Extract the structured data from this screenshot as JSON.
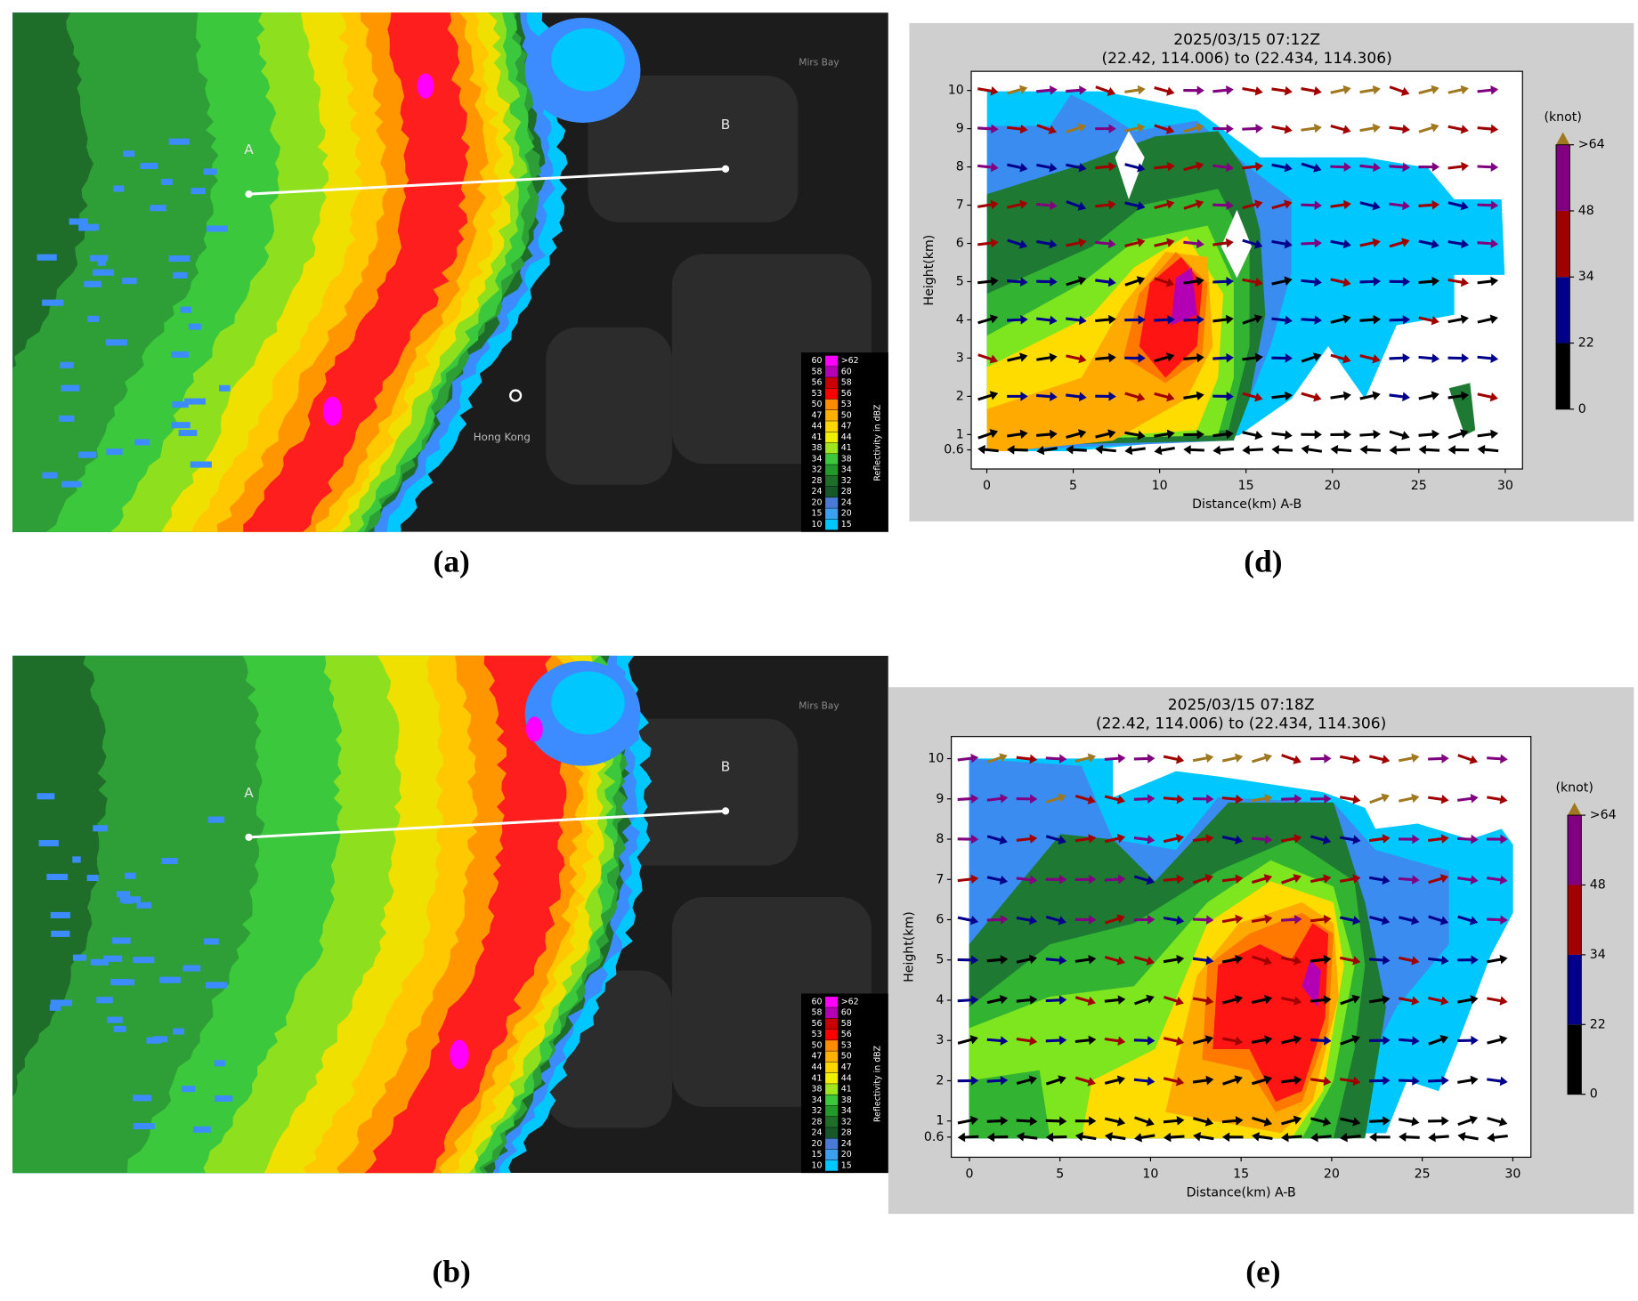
{
  "panels": {
    "a": {
      "label": "(a)",
      "point_a": "A",
      "point_b": "B",
      "place": "Hong Kong",
      "bay": "Mirs Bay"
    },
    "b": {
      "label": "(b)",
      "point_a": "A",
      "point_b": "B",
      "bay": "Mirs Bay"
    },
    "d": {
      "label": "(d)",
      "chart": {
        "type": "cross-section",
        "title": "2025/03/15 07:12Z",
        "subtitle": "(22.42, 114.006) to (22.434, 114.306)",
        "x_label": "Distance(km) A-B",
        "y_label": "Height(km)",
        "xlim": [
          -0.9,
          31
        ],
        "xticks": [
          0,
          5,
          10,
          15,
          20,
          25,
          30
        ],
        "ylim": [
          0.1,
          10.5
        ],
        "yticks": [
          0.6,
          1,
          2,
          3,
          4,
          5,
          6,
          7,
          8,
          9,
          10
        ],
        "colorbar": {
          "title": "(knot)",
          "ticks": [
            0,
            22,
            34,
            48,
            {
              "value": 64,
              "label": ">64"
            }
          ],
          "colors": [
            "#000000",
            "#00008b",
            "#a00000",
            "#800080"
          ],
          "extend_color": "#a07820"
        }
      }
    },
    "e": {
      "label": "(e)",
      "chart": {
        "type": "cross-section",
        "title": "2025/03/15 07:18Z",
        "subtitle": "(22.42, 114.006) to (22.434, 114.306)",
        "x_label": "Distance(km) A-B",
        "y_label": "Height(km)",
        "xlim": [
          -1,
          31
        ],
        "xticks": [
          0,
          5,
          10,
          15,
          20,
          25,
          30
        ],
        "ylim": [
          0.1,
          10.55
        ],
        "yticks": [
          0.6,
          1,
          2,
          3,
          4,
          5,
          6,
          7,
          8,
          9,
          10
        ],
        "colorbar": {
          "title": "(knot)",
          "ticks": [
            0,
            22,
            34,
            48,
            {
              "value": 64,
              "label": ">64"
            }
          ],
          "colors": [
            "#000000",
            "#00008b",
            "#a00000",
            "#800080"
          ],
          "extend_color": "#a07820"
        }
      }
    }
  },
  "radar_legend": {
    "title": "Reflectivity in dBZ",
    "lower": [
      60,
      58,
      56,
      53,
      50,
      47,
      44,
      41,
      38,
      34,
      32,
      28,
      24,
      20,
      15,
      10
    ],
    "upper": [
      ">62",
      60,
      58,
      56,
      53,
      50,
      47,
      44,
      41,
      38,
      34,
      32,
      28,
      24,
      20,
      15
    ],
    "colors": [
      "#ff00ff",
      "#b400b4",
      "#c80000",
      "#ff0000",
      "#ff8c00",
      "#ffb000",
      "#ffd700",
      "#f0f000",
      "#a0e61e",
      "#3cc83c",
      "#229a2a",
      "#1e6e2a",
      "#17582a",
      "#4a7ad6",
      "#3ca0f0",
      "#00c8ff"
    ]
  }
}
